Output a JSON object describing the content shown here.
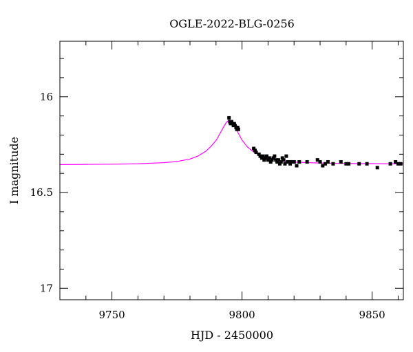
{
  "chart_data": {
    "type": "scatter",
    "title": "OGLE-2022-BLG-0256",
    "xlabel": "HJD - 2450000",
    "ylabel": "I magnitude",
    "xlim": [
      9730,
      9862
    ],
    "ylim": [
      17.06,
      15.71
    ],
    "y_inverted": true,
    "x_ticks": [
      9750,
      9800,
      9850
    ],
    "y_ticks": [
      16,
      16.5,
      17
    ],
    "x_tick_labels": [
      "9750",
      "9800",
      "9850"
    ],
    "y_tick_labels": [
      "16",
      "16.5",
      "17"
    ],
    "grid": false,
    "series": [
      {
        "kind": "points",
        "color": "#000000",
        "x": [
          9795.0,
          9795.3,
          9795.6,
          9796.0,
          9796.3,
          9796.7,
          9797.0,
          9797.3,
          9797.7,
          9798.0,
          9798.3,
          9798.6,
          9804.5,
          9805.0,
          9805.4,
          9806.5,
          9807.0,
          9807.6,
          9808.1,
          9808.5,
          9809.0,
          9809.5,
          9810.0,
          9810.5,
          9811.0,
          9811.5,
          9812.0,
          9812.5,
          9813.0,
          9813.5,
          9814.0,
          9814.5,
          9815.0,
          9815.5,
          9816.0,
          9816.5,
          9817.0,
          9817.5,
          9818.0,
          9818.5,
          9819.0,
          9820.0,
          9821.0,
          9822.0,
          9825.0,
          9829.0,
          9830.0,
          9831.0,
          9832.0,
          9833.0,
          9835.0,
          9838.0,
          9840.0,
          9841.0,
          9845.0,
          9848.0,
          9852.0,
          9857.0,
          9859.0,
          9860.0,
          9861.0
        ],
        "y": [
          16.11,
          16.13,
          16.14,
          16.13,
          16.14,
          16.15,
          16.14,
          16.15,
          16.16,
          16.17,
          16.16,
          16.17,
          16.27,
          16.28,
          16.29,
          16.3,
          16.31,
          16.32,
          16.31,
          16.33,
          16.32,
          16.31,
          16.33,
          16.32,
          16.34,
          16.33,
          16.32,
          16.31,
          16.33,
          16.34,
          16.33,
          16.35,
          16.34,
          16.32,
          16.33,
          16.35,
          16.31,
          16.34,
          16.34,
          16.35,
          16.34,
          16.34,
          16.36,
          16.34,
          16.34,
          16.33,
          16.34,
          16.36,
          16.35,
          16.34,
          16.35,
          16.34,
          16.35,
          16.35,
          16.35,
          16.35,
          16.37,
          16.35,
          16.34,
          16.35,
          16.35
        ],
        "yerr": 0.008
      },
      {
        "kind": "model-curve",
        "color": "#ff00ff",
        "x": [
          9730,
          9740,
          9750,
          9760,
          9770,
          9775,
          9780,
          9783,
          9786,
          9788,
          9790,
          9791,
          9792,
          9793,
          9794,
          9795,
          9796,
          9797,
          9798,
          9799,
          9800,
          9802,
          9804,
          9806,
          9808,
          9810,
          9813,
          9816,
          9820,
          9825,
          9830,
          9835,
          9840,
          9845,
          9850,
          9855,
          9862
        ],
        "y": [
          16.354,
          16.353,
          16.352,
          16.35,
          16.344,
          16.338,
          16.325,
          16.31,
          16.285,
          16.26,
          16.228,
          16.205,
          16.18,
          16.155,
          16.133,
          16.122,
          16.128,
          16.148,
          16.175,
          16.202,
          16.226,
          16.261,
          16.284,
          16.3,
          16.312,
          16.321,
          16.33,
          16.336,
          16.341,
          16.344,
          16.346,
          16.347,
          16.348,
          16.349,
          16.349,
          16.35,
          16.35
        ]
      }
    ]
  }
}
